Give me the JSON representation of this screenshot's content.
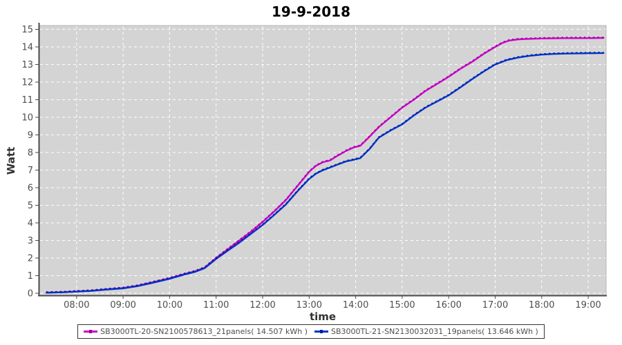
{
  "title": "19-9-2018",
  "axes": {
    "x_label": "time",
    "y_label": "Watt"
  },
  "colors": {
    "plot_background": "#d4d4d4",
    "grid": "#ffffff",
    "axis_line": "#4a4a4a",
    "plot_outline": "#b5b5b5",
    "tick_label": "#4d4d4d",
    "series1": "#cc00cc",
    "series1_marker": "#990099",
    "series2": "#0033cc",
    "series2_marker": "#001f99"
  },
  "legend": {
    "entries": [
      {
        "label": "SB3000TL-20-SN2100578613_21panels( 14.507 kWh )"
      },
      {
        "label": "SB3000TL-21-SN2130032031_19panels( 13.646 kWh )"
      }
    ]
  },
  "chart_data": {
    "type": "line",
    "title": "19-9-2018",
    "xlabel": "time",
    "ylabel": "Watt",
    "grid": true,
    "legend_position": "bottom",
    "xlim_hours": [
      7.2,
      19.385
    ],
    "ylim": [
      0,
      15
    ],
    "x_ticks": [
      {
        "hour": 8,
        "label": "08:00"
      },
      {
        "hour": 9,
        "label": "09:00"
      },
      {
        "hour": 10,
        "label": "10:00"
      },
      {
        "hour": 11,
        "label": "11:00"
      },
      {
        "hour": 12,
        "label": "12:00"
      },
      {
        "hour": 13,
        "label": "13:00"
      },
      {
        "hour": 14,
        "label": "14:00"
      },
      {
        "hour": 15,
        "label": "15:00"
      },
      {
        "hour": 16,
        "label": "16:00"
      },
      {
        "hour": 17,
        "label": "17:00"
      },
      {
        "hour": 18,
        "label": "18:00"
      },
      {
        "hour": 19,
        "label": "19:00"
      }
    ],
    "y_ticks": [
      0,
      1,
      2,
      3,
      4,
      5,
      6,
      7,
      8,
      9,
      10,
      11,
      12,
      13,
      14,
      15
    ],
    "series": [
      {
        "name": "SB3000TL-20-SN2100578613_21panels( 14.507 kWh )",
        "total_kwh": 14.507,
        "color": "#cc00cc",
        "marker_color": "#990099",
        "points": [
          [
            7.35,
            0.03
          ],
          [
            7.7,
            0.06
          ],
          [
            8.0,
            0.1
          ],
          [
            8.3,
            0.14
          ],
          [
            8.6,
            0.21
          ],
          [
            9.0,
            0.3
          ],
          [
            9.3,
            0.42
          ],
          [
            9.6,
            0.6
          ],
          [
            10.0,
            0.85
          ],
          [
            10.3,
            1.08
          ],
          [
            10.55,
            1.25
          ],
          [
            10.75,
            1.45
          ],
          [
            11.0,
            2.0
          ],
          [
            11.25,
            2.5
          ],
          [
            11.5,
            3.0
          ],
          [
            11.75,
            3.5
          ],
          [
            12.0,
            4.05
          ],
          [
            12.25,
            4.65
          ],
          [
            12.5,
            5.3
          ],
          [
            12.75,
            6.1
          ],
          [
            13.0,
            6.9
          ],
          [
            13.15,
            7.25
          ],
          [
            13.3,
            7.45
          ],
          [
            13.45,
            7.55
          ],
          [
            13.6,
            7.8
          ],
          [
            13.8,
            8.1
          ],
          [
            13.95,
            8.28
          ],
          [
            14.1,
            8.38
          ],
          [
            14.3,
            8.9
          ],
          [
            14.5,
            9.45
          ],
          [
            14.75,
            10.0
          ],
          [
            15.0,
            10.55
          ],
          [
            15.25,
            11.0
          ],
          [
            15.5,
            11.5
          ],
          [
            15.75,
            11.9
          ],
          [
            16.0,
            12.3
          ],
          [
            16.25,
            12.75
          ],
          [
            16.5,
            13.15
          ],
          [
            16.75,
            13.6
          ],
          [
            17.0,
            14.0
          ],
          [
            17.15,
            14.22
          ],
          [
            17.3,
            14.36
          ],
          [
            17.5,
            14.43
          ],
          [
            17.75,
            14.46
          ],
          [
            18.0,
            14.48
          ],
          [
            18.5,
            14.5
          ],
          [
            19.0,
            14.5
          ],
          [
            19.33,
            14.51
          ]
        ]
      },
      {
        "name": "SB3000TL-21-SN2130032031_19panels( 13.646 kWh )",
        "total_kwh": 13.646,
        "color": "#0033cc",
        "marker_color": "#001f99",
        "points": [
          [
            7.35,
            0.03
          ],
          [
            7.7,
            0.05
          ],
          [
            8.0,
            0.09
          ],
          [
            8.3,
            0.13
          ],
          [
            8.6,
            0.2
          ],
          [
            9.0,
            0.28
          ],
          [
            9.3,
            0.4
          ],
          [
            9.6,
            0.57
          ],
          [
            10.0,
            0.82
          ],
          [
            10.3,
            1.05
          ],
          [
            10.55,
            1.22
          ],
          [
            10.75,
            1.42
          ],
          [
            11.0,
            1.95
          ],
          [
            11.25,
            2.42
          ],
          [
            11.5,
            2.88
          ],
          [
            11.75,
            3.38
          ],
          [
            12.0,
            3.88
          ],
          [
            12.25,
            4.45
          ],
          [
            12.5,
            5.05
          ],
          [
            12.75,
            5.8
          ],
          [
            13.0,
            6.5
          ],
          [
            13.15,
            6.8
          ],
          [
            13.3,
            7.0
          ],
          [
            13.45,
            7.15
          ],
          [
            13.6,
            7.3
          ],
          [
            13.8,
            7.5
          ],
          [
            13.95,
            7.58
          ],
          [
            14.1,
            7.68
          ],
          [
            14.3,
            8.2
          ],
          [
            14.5,
            8.85
          ],
          [
            14.75,
            9.25
          ],
          [
            15.0,
            9.6
          ],
          [
            15.25,
            10.1
          ],
          [
            15.5,
            10.55
          ],
          [
            15.75,
            10.9
          ],
          [
            16.0,
            11.25
          ],
          [
            16.25,
            11.7
          ],
          [
            16.5,
            12.16
          ],
          [
            16.75,
            12.6
          ],
          [
            17.0,
            13.0
          ],
          [
            17.25,
            13.25
          ],
          [
            17.5,
            13.4
          ],
          [
            17.75,
            13.5
          ],
          [
            18.0,
            13.56
          ],
          [
            18.25,
            13.6
          ],
          [
            18.5,
            13.62
          ],
          [
            19.0,
            13.64
          ],
          [
            19.33,
            13.65
          ]
        ]
      }
    ]
  }
}
